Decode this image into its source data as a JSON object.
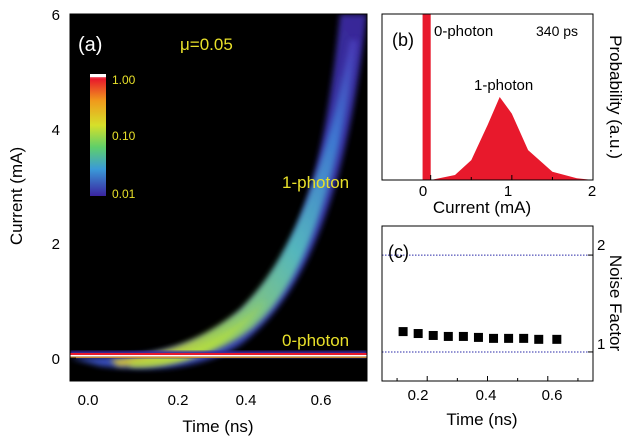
{
  "colors": {
    "annotation_yellow": "#e8e02a",
    "panel_b_fill": "#e8192c",
    "panel_c_marker": "#000000",
    "panel_c_refline": "#2a2aa8",
    "heatmap_background": "#000000"
  },
  "chart_data": [
    {
      "panel": "(a)",
      "type": "heatmap",
      "xlabel": "Time (ns)",
      "ylabel": "Current (mA)",
      "xlim": [
        -0.1,
        0.75
      ],
      "ylim": [
        -0.4,
        6
      ],
      "xticks": [
        "0.0",
        "0.2",
        "0.4",
        "0.6"
      ],
      "yticks": [
        "0",
        "2",
        "4",
        "6"
      ],
      "annotations": [
        "μ=0.05",
        "1-photon",
        "0-photon"
      ],
      "colorbar": {
        "scale": "log",
        "ticks": [
          "1.00",
          "0.10",
          "0.01"
        ]
      },
      "bands": [
        {
          "name": "1-photon",
          "x": [
            0.05,
            0.2,
            0.3,
            0.4,
            0.5,
            0.6,
            0.7,
            0.75
          ],
          "y_center": [
            0.1,
            0.45,
            0.9,
            1.55,
            2.4,
            3.5,
            4.9,
            5.8
          ]
        },
        {
          "name": "0-photon",
          "x": [
            -0.1,
            0.75
          ],
          "y_center": [
            0.05,
            0.05
          ]
        }
      ]
    },
    {
      "panel": "(b)",
      "type": "area",
      "xlabel": "Current (mA)",
      "ylabel": "Probability (a.u.)",
      "xlim": [
        -0.6,
        2
      ],
      "xticks": [
        "0",
        "1",
        "2"
      ],
      "annotations": [
        "0-photon",
        "340 ps",
        "1-photon"
      ],
      "series": [
        {
          "name": "0-photon",
          "x": [
            -0.1,
            0.0
          ],
          "y": [
            1.0,
            1.0
          ]
        },
        {
          "name": "1-photon",
          "x": [
            0.0,
            0.3,
            0.5,
            0.7,
            0.85,
            1.0,
            1.2,
            1.5,
            1.8,
            2.0
          ],
          "y": [
            0.0,
            0.03,
            0.12,
            0.33,
            0.5,
            0.4,
            0.18,
            0.05,
            0.01,
            0.0
          ]
        }
      ]
    },
    {
      "panel": "(c)",
      "type": "scatter",
      "xlabel": "Time (ns)",
      "ylabel": "Noise Factor",
      "xlim": [
        0.05,
        0.75
      ],
      "ylim": [
        0.7,
        2.3
      ],
      "xticks": [
        "0.2",
        "0.4",
        "0.6"
      ],
      "yticks": [
        "1",
        "2"
      ],
      "x": [
        0.12,
        0.17,
        0.22,
        0.27,
        0.32,
        0.37,
        0.42,
        0.47,
        0.52,
        0.57,
        0.63
      ],
      "y": [
        1.21,
        1.19,
        1.17,
        1.16,
        1.16,
        1.15,
        1.14,
        1.14,
        1.14,
        1.13,
        1.13
      ],
      "reference_lines": [
        1,
        2
      ]
    }
  ]
}
